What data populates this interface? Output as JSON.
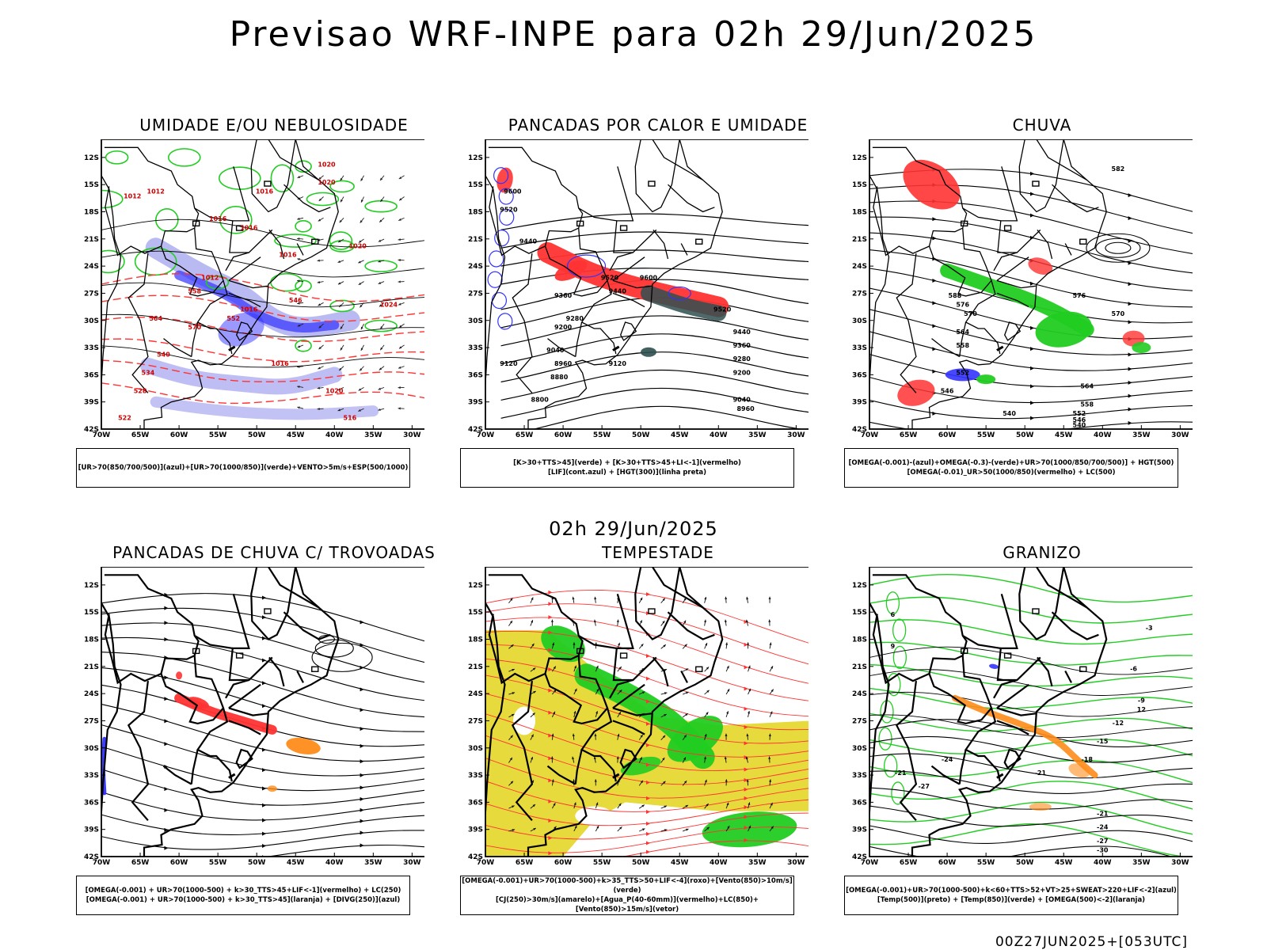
{
  "title": "Previsao WRF-INPE  para 02h 29/Jun/2025",
  "subtitle": "02h 29/Jun/2025",
  "footer": "00Z27JUN2025+[053UTC]",
  "lat_labels": [
    "12S",
    "15S",
    "18S",
    "21S",
    "24S",
    "27S",
    "30S",
    "33S",
    "36S",
    "39S",
    "42S"
  ],
  "lon_labels": [
    "70W",
    "65W",
    "60W",
    "55W",
    "50W",
    "45W",
    "40W",
    "35W",
    "30W"
  ],
  "colors": {
    "blue": "#3333ff",
    "green": "#22cc22",
    "red": "#ff3333",
    "yellow": "#e6d831",
    "orange": "#ff8c1a",
    "teal": "#2f4f4f",
    "lavender": "#b3b3f2"
  },
  "panels": [
    {
      "title": "UMIDADE E/OU NEBULOSIDADE",
      "legend": [
        "[UR>70(850/700/500)](azul)+[UR>70(1000/850)](verde)+VENTO>5m/s+ESP(500/1000)"
      ],
      "labels": [
        "1020",
        "1016",
        "1012",
        "1016",
        "1016",
        "1016",
        "1012",
        "1016",
        "1016",
        "1020",
        "1024",
        "1020",
        "546",
        "552",
        "558",
        "564",
        "570",
        "540",
        "534",
        "528",
        "522",
        "516",
        "1020",
        "1012"
      ]
    },
    {
      "title": "PANCADAS POR CALOR E UMIDADE",
      "legend": [
        "[K>30+TTS>45](verde) + [K>30+TTS>45+LI<-1](vermelho)",
        "[LIF](cont.azul) + [HGT(300)](linha preta)"
      ],
      "labels": [
        "9600",
        "9520",
        "9440",
        "9520",
        "9600",
        "9440",
        "9360",
        "9280",
        "9200",
        "9040",
        "8960",
        "8880",
        "9120",
        "8800",
        "9520",
        "9440",
        "9360",
        "9280",
        "9200",
        "9040",
        "8960",
        "9120"
      ]
    },
    {
      "title": "CHUVA",
      "legend": [
        "[OMEGA(-0.001)-(azul)+OMEGA(-0.3)-(verde)+UR>70(1000/850/700/500)] + HGT(500)",
        "[OMEGA(-0.01)_UR>50(1000/850)(vermelho) + LC(500)"
      ],
      "labels": [
        "588",
        "576",
        "570",
        "564",
        "558",
        "552",
        "546",
        "540",
        "582",
        "576",
        "570",
        "564",
        "558",
        "552",
        "546",
        "540"
      ]
    },
    {
      "title": "PANCADAS DE CHUVA C/ TROVOADAS",
      "legend": [
        "[OMEGA(-0.001) + UR>70(1000-500) + k>30_TTS>45+LIF<-1](vermelho) + LC(250)",
        "[OMEGA(-0.001) + UR>70(1000-500) + k>30_TTS>45](laranja) + [DIVG(250)](azul)"
      ],
      "labels": []
    },
    {
      "title": "TEMPESTADE",
      "legend": [
        "[OMEGA(-0.001)+UR>70(1000-500)+k>35_TTS>50+LIF<-4](roxo)+[Vento(850)>10m/s](verde)",
        "[CJ(250)>30m/s](amarelo)+[Agua_P(40-60mm)](vermelho)+LC(850)+[Vento(850)>15m/s](vetor)"
      ],
      "labels": []
    },
    {
      "title": "GRANIZO",
      "legend": [
        "[OMEGA(-0.001)+UR>70(1000-500)+k<60+TTS>52+VT>25+SWEAT>220+LIF<-2](azul)",
        "[Temp(500)](preto) + [Temp(850)](verde) + [OMEGA(500)<-2](laranja)"
      ],
      "labels": [
        "-21",
        "-27",
        "-24",
        "-21",
        "-18",
        "-15",
        "-12",
        "-9",
        "-6",
        "-3",
        "6",
        "9",
        "12",
        "-21",
        "-24",
        "-27",
        "-30"
      ]
    }
  ]
}
